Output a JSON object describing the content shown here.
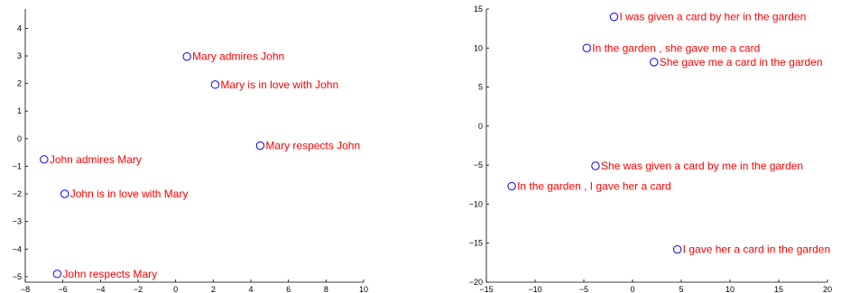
{
  "chart_data": [
    {
      "type": "scatter",
      "title": "",
      "xlabel": "",
      "ylabel": "",
      "xlim": [
        -8,
        10
      ],
      "ylim": [
        -5.2,
        4.7
      ],
      "xticks": [
        -8,
        -6,
        -4,
        -2,
        0,
        2,
        4,
        6,
        8,
        10
      ],
      "yticks": [
        -5,
        -4,
        -3,
        -2,
        -1,
        0,
        1,
        2,
        3,
        4
      ],
      "grid": false,
      "marker_color": "#0000ff",
      "label_color": "#ff0000",
      "points": [
        {
          "label": "Mary admires John",
          "x": 0.6,
          "y": 2.98
        },
        {
          "label": "Mary is in love with John",
          "x": 2.1,
          "y": 1.96
        },
        {
          "label": "Mary respects John",
          "x": 4.5,
          "y": -0.25
        },
        {
          "label": "John admires Mary",
          "x": -7.0,
          "y": -0.75
        },
        {
          "label": "John is in love with Mary",
          "x": -5.9,
          "y": -2.0
        },
        {
          "label": "John respects Mary",
          "x": -6.3,
          "y": -4.9
        }
      ]
    },
    {
      "type": "scatter",
      "title": "",
      "xlabel": "",
      "ylabel": "",
      "xlim": [
        -15,
        20
      ],
      "ylim": [
        -20,
        15
      ],
      "xticks": [
        -15,
        -10,
        -5,
        0,
        5,
        10,
        15,
        20
      ],
      "yticks": [
        -20,
        -15,
        -10,
        -5,
        0,
        5,
        10,
        15
      ],
      "grid": false,
      "marker_color": "#0000ff",
      "label_color": "#ff0000",
      "points": [
        {
          "label": "I was given a card by her in the garden",
          "x": -1.9,
          "y": 14.0
        },
        {
          "label": "In the garden , she gave me a card",
          "x": -4.7,
          "y": 10.0
        },
        {
          "label": "She gave me a card in the garden",
          "x": 2.2,
          "y": 8.2
        },
        {
          "label": "She was given a card by me in the garden",
          "x": -3.8,
          "y": -5.1
        },
        {
          "label": "In the garden , I gave her a card",
          "x": -12.4,
          "y": -7.7
        },
        {
          "label": "I gave her a card in the garden",
          "x": 4.6,
          "y": -15.8
        }
      ]
    }
  ]
}
